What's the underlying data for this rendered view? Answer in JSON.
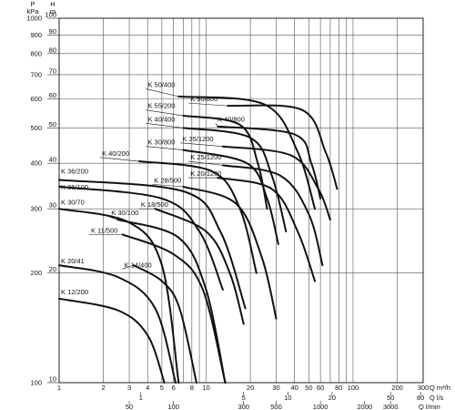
{
  "chart_data": {
    "type": "line",
    "title": "",
    "x_scale": "log",
    "y_scale": "log",
    "xlim": [
      1,
      300
    ],
    "ylim": [
      10,
      100
    ],
    "grid": true,
    "y_axis_left": {
      "kpa_label": "P\nkPa",
      "kpa_ticks": [
        "1000",
        "900",
        "800",
        "700",
        "600",
        "500",
        "400",
        "300",
        "200",
        "100"
      ],
      "m_label": "H\nm",
      "m_ticks": [
        "100",
        "90",
        "80",
        "70",
        "60",
        "50",
        "40",
        "30",
        "20",
        "10"
      ]
    },
    "x_axis_bottom": {
      "m3h_label": "Q m³/h",
      "m3h_ticks": [
        "1",
        "2",
        "3",
        "4",
        "5",
        "6",
        "8",
        "10",
        "20",
        "30",
        "40",
        "50",
        "60",
        "80",
        "100",
        "200",
        "300"
      ],
      "ls_label": "Q l/s",
      "ls_ticks": [
        "1",
        "5",
        "10",
        "20",
        "50",
        "80"
      ],
      "lmin_label": "Q l/min",
      "lmin_ticks": [
        "50",
        "100",
        "300",
        "500",
        "1000",
        "2000",
        "3000"
      ]
    },
    "series": [
      {
        "name": "K 12/200",
        "points": [
          [
            1,
            17
          ],
          [
            2.5,
            15.8
          ],
          [
            4,
            13.5
          ],
          [
            5.2,
            10
          ]
        ]
      },
      {
        "name": "K 20/41",
        "points": [
          [
            1,
            21
          ],
          [
            2.5,
            19.5
          ],
          [
            4.5,
            16
          ],
          [
            6.2,
            10
          ]
        ]
      },
      {
        "name": "K 14/400",
        "points": [
          [
            3.2,
            21
          ],
          [
            5,
            19
          ],
          [
            6.6,
            16
          ],
          [
            8.6,
            10
          ]
        ]
      },
      {
        "name": "K 11/500",
        "points": [
          [
            2.7,
            25.5
          ],
          [
            6,
            22.5
          ],
          [
            9.5,
            18
          ],
          [
            13.5,
            10
          ]
        ]
      },
      {
        "name": "K 30/70",
        "points": [
          [
            1,
            30
          ],
          [
            3,
            27.5
          ],
          [
            5,
            21
          ],
          [
            6.5,
            10
          ]
        ]
      },
      {
        "name": "K 30/100",
        "points": [
          [
            2.5,
            28
          ],
          [
            6.5,
            25
          ],
          [
            10,
            18
          ],
          [
            13.5,
            10
          ]
        ]
      },
      {
        "name": "K 18/500",
        "points": [
          [
            4.5,
            30
          ],
          [
            10,
            26
          ],
          [
            14.5,
            20
          ],
          [
            18,
            14.5
          ]
        ]
      },
      {
        "name": "K 36/100",
        "points": [
          [
            1,
            34.5
          ],
          [
            5,
            32
          ],
          [
            9,
            26
          ],
          [
            13,
            18
          ]
        ]
      },
      {
        "name": "K 36/200",
        "points": [
          [
            1,
            36
          ],
          [
            7,
            33.5
          ],
          [
            12.5,
            26
          ],
          [
            18.5,
            16
          ]
        ]
      },
      {
        "name": "K 28/500",
        "points": [
          [
            7,
            34.5
          ],
          [
            16,
            31
          ],
          [
            24,
            22
          ],
          [
            30,
            15
          ]
        ]
      },
      {
        "name": "K 20/1200",
        "points": [
          [
            12,
            36.5
          ],
          [
            28,
            34
          ],
          [
            42,
            26
          ],
          [
            55,
            19
          ]
        ]
      },
      {
        "name": "K 40/200",
        "points": [
          [
            3.5,
            40.5
          ],
          [
            11,
            38
          ],
          [
            17,
            30
          ],
          [
            22,
            20
          ]
        ]
      },
      {
        "name": "K 25/1200",
        "points": [
          [
            13,
            39.5
          ],
          [
            32,
            37
          ],
          [
            50,
            29
          ],
          [
            62,
            21
          ]
        ]
      },
      {
        "name": "K 30/800",
        "points": [
          [
            7,
            43.5
          ],
          [
            19,
            40
          ],
          [
            26,
            32
          ],
          [
            31,
            24
          ]
        ]
      },
      {
        "name": "K 35/1200",
        "points": [
          [
            13,
            44.5
          ],
          [
            38,
            42
          ],
          [
            58,
            34
          ],
          [
            70,
            28
          ]
        ]
      },
      {
        "name": "K 40/400",
        "points": [
          [
            7,
            50
          ],
          [
            20,
            47
          ],
          [
            28,
            37
          ],
          [
            35,
            26
          ]
        ]
      },
      {
        "name": "K 40/800",
        "points": [
          [
            12,
            50.5
          ],
          [
            40,
            48
          ],
          [
            52,
            40
          ],
          [
            60,
            32
          ]
        ]
      },
      {
        "name": "K 55/200",
        "points": [
          [
            7,
            54
          ],
          [
            17,
            51
          ],
          [
            22.5,
            40
          ],
          [
            26,
            30
          ]
        ]
      },
      {
        "name": "K 50/800",
        "points": [
          [
            14,
            57.5
          ],
          [
            45,
            56
          ],
          [
            65,
            43
          ],
          [
            78,
            34
          ]
        ]
      },
      {
        "name": "K 50/400",
        "points": [
          [
            6.5,
            61
          ],
          [
            25,
            58
          ],
          [
            42,
            43
          ],
          [
            55,
            30
          ]
        ]
      }
    ],
    "labels": [
      {
        "name": "K 50/400",
        "x": 3.9,
        "y": 64
      },
      {
        "name": "K 55/200",
        "x": 3.9,
        "y": 56
      },
      {
        "name": "K 40/400",
        "x": 3.9,
        "y": 51.5
      },
      {
        "name": "K 50/800",
        "x": 7.6,
        "y": 58.5
      },
      {
        "name": "K 40/800",
        "x": 11.6,
        "y": 51.5
      },
      {
        "name": "K 30/800",
        "x": 3.9,
        "y": 44.5
      },
      {
        "name": "K 35/1200",
        "x": 6.7,
        "y": 45.5
      },
      {
        "name": "K 25/1200",
        "x": 7.6,
        "y": 40.5
      },
      {
        "name": "K 40/200",
        "x": 1.9,
        "y": 41.5
      },
      {
        "name": "K 20/1200",
        "x": 7.6,
        "y": 36.5
      },
      {
        "name": "K 36/200",
        "x": 1.0,
        "y": 37
      },
      {
        "name": "K 28/500",
        "x": 4.3,
        "y": 35
      },
      {
        "name": "K 36/100",
        "x": 1.0,
        "y": 33.5
      },
      {
        "name": "K 18/500",
        "x": 3.5,
        "y": 30
      },
      {
        "name": "K 30/70",
        "x": 1.0,
        "y": 30.5
      },
      {
        "name": "K 30/100",
        "x": 2.2,
        "y": 28.5
      },
      {
        "name": "K 11/500",
        "x": 1.6,
        "y": 25.5
      },
      {
        "name": "K 20/41",
        "x": 1.0,
        "y": 21
      },
      {
        "name": "K 14/400",
        "x": 2.7,
        "y": 20.5
      },
      {
        "name": "K 12/200",
        "x": 1.0,
        "y": 17.3
      }
    ]
  }
}
